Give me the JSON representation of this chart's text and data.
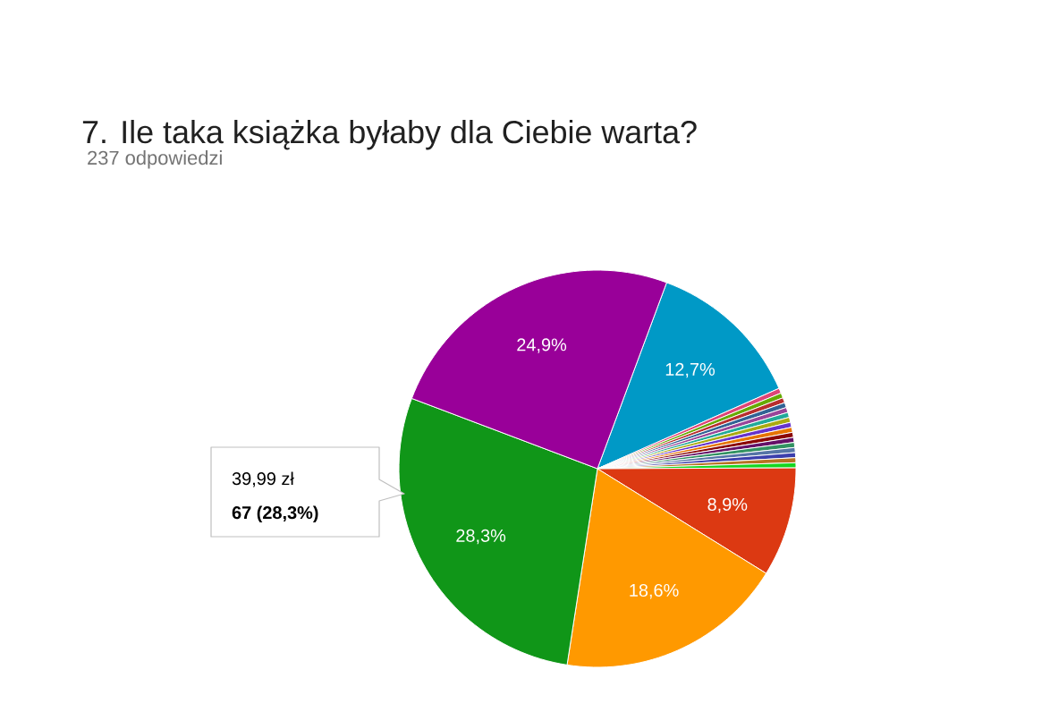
{
  "chart_data": {
    "type": "pie",
    "title": "7. Ile taka książka byłaby dla Ciebie warta?",
    "subtitle": "237 odpowiedzi",
    "categories": [
      null,
      null,
      null,
      null,
      null,
      null,
      null,
      null,
      null,
      null,
      null,
      null,
      null,
      null,
      null,
      null,
      null,
      null,
      null,
      null,
      null
    ],
    "values": [
      12.7,
      0.41,
      0.41,
      0.41,
      0.41,
      0.41,
      0.41,
      0.41,
      0.41,
      0.41,
      0.41,
      0.41,
      0.41,
      0.41,
      0.41,
      0.41,
      0.41,
      8.9,
      18.6,
      28.3,
      24.9
    ],
    "colors": [
      "#0099c6",
      "#dd4477",
      "#66aa00",
      "#b82e2e",
      "#316395",
      "#994499",
      "#22aa99",
      "#aaaa11",
      "#6633cc",
      "#e67300",
      "#8b0707",
      "#651067",
      "#329262",
      "#5574a6",
      "#3b3eac",
      "#b77322",
      "#16d620",
      "#dc3912",
      "#ff9900",
      "#109618",
      "#990099"
    ],
    "value_labels": [
      "12,7%",
      null,
      null,
      null,
      null,
      null,
      null,
      null,
      null,
      null,
      null,
      null,
      null,
      null,
      null,
      null,
      null,
      "8,9%",
      "18,6%",
      "28,3%",
      "24,9%"
    ],
    "annotations": [
      "39,99 zł",
      "67 (28,3%)"
    ]
  }
}
